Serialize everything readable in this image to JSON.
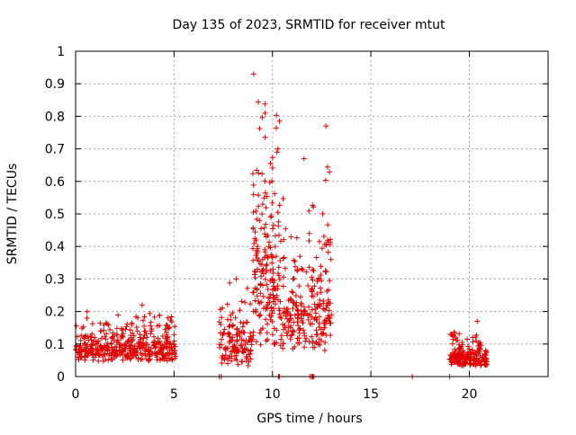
{
  "chart_data": {
    "type": "scatter",
    "title": "Day 135 of 2023, SRMTID for receiver mtut",
    "xlabel": "GPS time / hours",
    "ylabel": "SRMTID / TECUs",
    "xlim": [
      0,
      24
    ],
    "ylim": [
      0,
      1
    ],
    "x_ticks": [
      0,
      5,
      10,
      15,
      20
    ],
    "y_ticks": [
      0,
      0.1,
      0.2,
      0.3,
      0.4,
      0.5,
      0.6,
      0.7,
      0.8,
      0.9,
      1
    ],
    "x_tick_labels": [
      "0",
      "5",
      "10",
      "15",
      "20"
    ],
    "y_tick_labels": [
      "0",
      "0.1",
      "0.2",
      "0.3",
      "0.4",
      "0.5",
      "0.6",
      "0.7",
      "0.8",
      "0.9",
      "1"
    ],
    "grid": true,
    "marker": "plus",
    "color": "#e00000",
    "series": [
      {
        "name": "SRMTID",
        "clusters": [
          {
            "x_range": [
              0.0,
              5.1
            ],
            "y_range": [
              0.03,
              0.2
            ],
            "peak": 0.22,
            "count": 420
          },
          {
            "x_range": [
              7.3,
              9.0
            ],
            "y_range": [
              0.0,
              0.3
            ],
            "peak": 0.3,
            "count": 130
          },
          {
            "x_range": [
              9.0,
              10.4
            ],
            "y_range": [
              0.0,
              0.85
            ],
            "peak": 0.93,
            "count": 200
          },
          {
            "x_range": [
              10.4,
              12.0
            ],
            "y_range": [
              0.02,
              0.55
            ],
            "peak": 0.67,
            "count": 140
          },
          {
            "x_range": [
              12.0,
              13.0
            ],
            "y_range": [
              0.0,
              0.65
            ],
            "peak": 0.77,
            "count": 110
          },
          {
            "x_range": [
              19.0,
              20.9
            ],
            "y_range": [
              0.02,
              0.14
            ],
            "peak": 0.17,
            "count": 200
          }
        ],
        "zero_points": [
          7.3,
          7.4,
          10.3,
          10.35,
          11.9,
          12.0,
          12.05,
          12.1,
          17.1,
          19.0
        ]
      }
    ]
  }
}
